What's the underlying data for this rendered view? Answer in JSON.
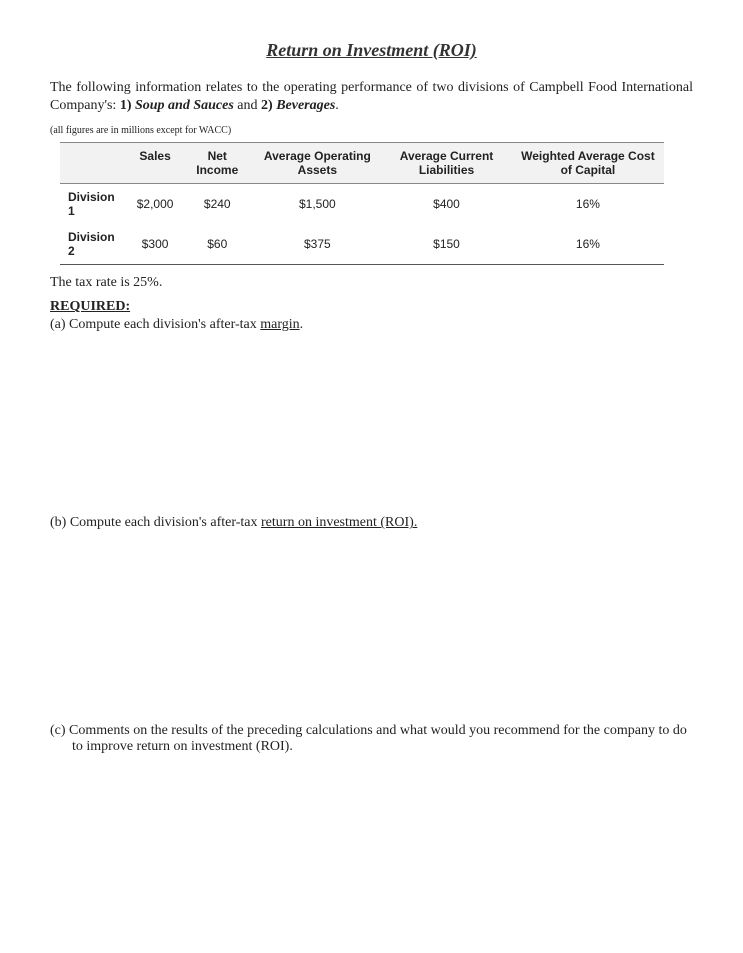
{
  "title": "Return on Investment (ROI)",
  "intro_p1": "The following information relates to the operating performance of two divisions of Campbell Food International Company's: ",
  "intro_num1": "1)",
  "intro_div1": "Soup and Sauces",
  "intro_and": " and ",
  "intro_num2": "2)",
  "intro_div2": "Beverages",
  "intro_end": ".",
  "note": "(all figures are in millions except for WACC)",
  "table": {
    "columns": [
      "",
      "Sales",
      "Net Income",
      "Average Operating Assets",
      "Average Current Liabilities",
      "Weighted Average Cost of Capital"
    ],
    "rows": [
      {
        "label": "Division 1",
        "sales": "$2,000",
        "ni": "$240",
        "aoa": "$1,500",
        "acl": "$400",
        "wacc": "16%"
      },
      {
        "label": "Division 2",
        "sales": "$300",
        "ni": "$60",
        "aoa": "$375",
        "acl": "$150",
        "wacc": "16%"
      }
    ]
  },
  "tax_line": "The tax rate is 25%.",
  "required_label": "REQUIRED:",
  "qa_prefix": "(a) Compute each division's after-tax ",
  "qa_u": "margin",
  "qa_suffix": ".",
  "qb_prefix": "(b) Compute each division's after-tax ",
  "qb_u": "return on investment (ROI).",
  "qc": "(c) Comments on the results of the preceding calculations and what would you recommend for the company to do to improve return on investment (ROI)."
}
